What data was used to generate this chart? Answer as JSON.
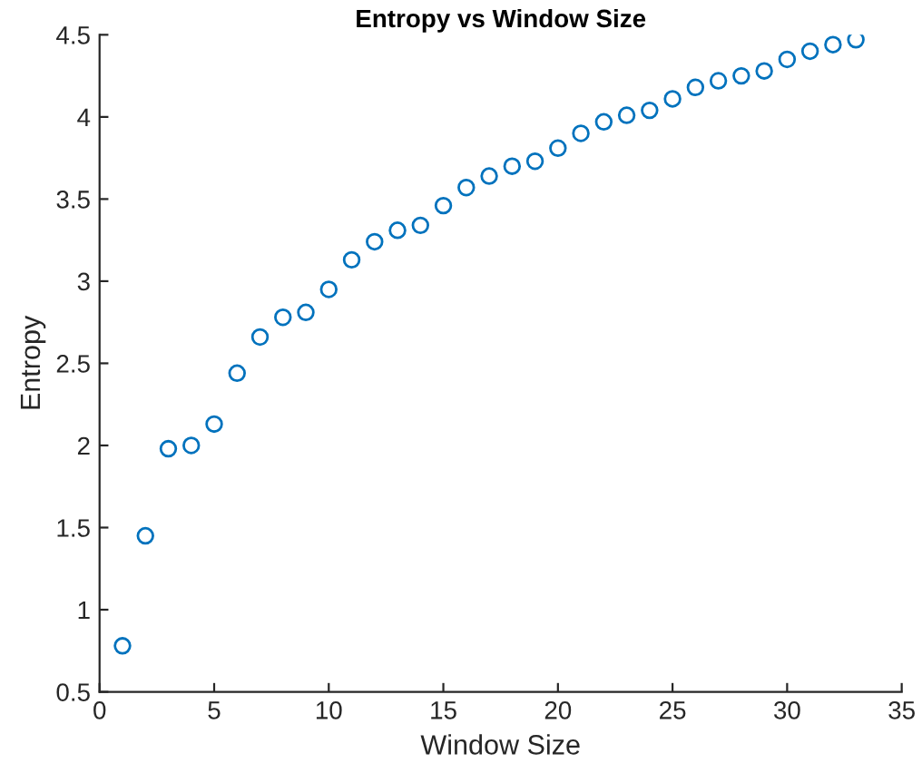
{
  "chart_data": {
    "type": "scatter",
    "title": "Entropy vs Window Size",
    "xlabel": "Window Size",
    "ylabel": "Entropy",
    "x": [
      1,
      2,
      3,
      4,
      5,
      6,
      7,
      8,
      9,
      10,
      11,
      12,
      13,
      14,
      15,
      16,
      17,
      18,
      19,
      20,
      21,
      22,
      23,
      24,
      25,
      26,
      27,
      28,
      29,
      30,
      31,
      32,
      33
    ],
    "series": [
      {
        "color": "#0072bd",
        "values": [
          0.78,
          1.45,
          1.98,
          2.0,
          2.13,
          2.44,
          2.66,
          2.78,
          2.81,
          2.95,
          3.13,
          3.24,
          3.31,
          3.34,
          3.46,
          3.57,
          3.64,
          3.7,
          3.73,
          3.81,
          3.9,
          3.97,
          4.01,
          4.04,
          4.11,
          4.18,
          4.22,
          4.25,
          4.28,
          4.35,
          4.4,
          4.44,
          4.47
        ]
      }
    ],
    "xlim": [
      0,
      35
    ],
    "xticks": [
      0,
      5,
      10,
      15,
      20,
      25,
      30,
      35
    ],
    "ylim": [
      0.5,
      4.5
    ],
    "yticks": [
      0.5,
      1,
      1.5,
      2,
      2.5,
      3,
      3.5,
      4,
      4.5
    ],
    "marker": "circle",
    "grid": false
  }
}
